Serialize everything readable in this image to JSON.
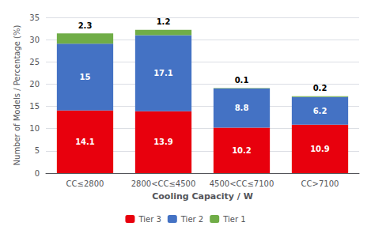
{
  "chart_data": {
    "type": "bar",
    "stacked": true,
    "categories": [
      "CC≤2800",
      "2800<CC≤4500",
      "4500<CC≤7100",
      "CC>7100"
    ],
    "series": [
      {
        "name": "Tier 3",
        "color": "#e8000d",
        "values": [
          14.1,
          13.9,
          10.2,
          10.9
        ]
      },
      {
        "name": "Tier 2",
        "color": "#4472c4",
        "values": [
          15,
          17.1,
          8.8,
          6.2
        ]
      },
      {
        "name": "Tier 1",
        "color": "#70ad47",
        "values": [
          2.3,
          1.2,
          0.1,
          0.2
        ]
      }
    ],
    "xlabel": "Cooling Capacity / W",
    "ylabel": "Number of Models / Percentage (%)",
    "ylim": [
      0,
      35
    ],
    "yticks": [
      0,
      5,
      10,
      15,
      20,
      25,
      30,
      35
    ],
    "grid": true,
    "legend": "bottom",
    "data_labels": true
  }
}
